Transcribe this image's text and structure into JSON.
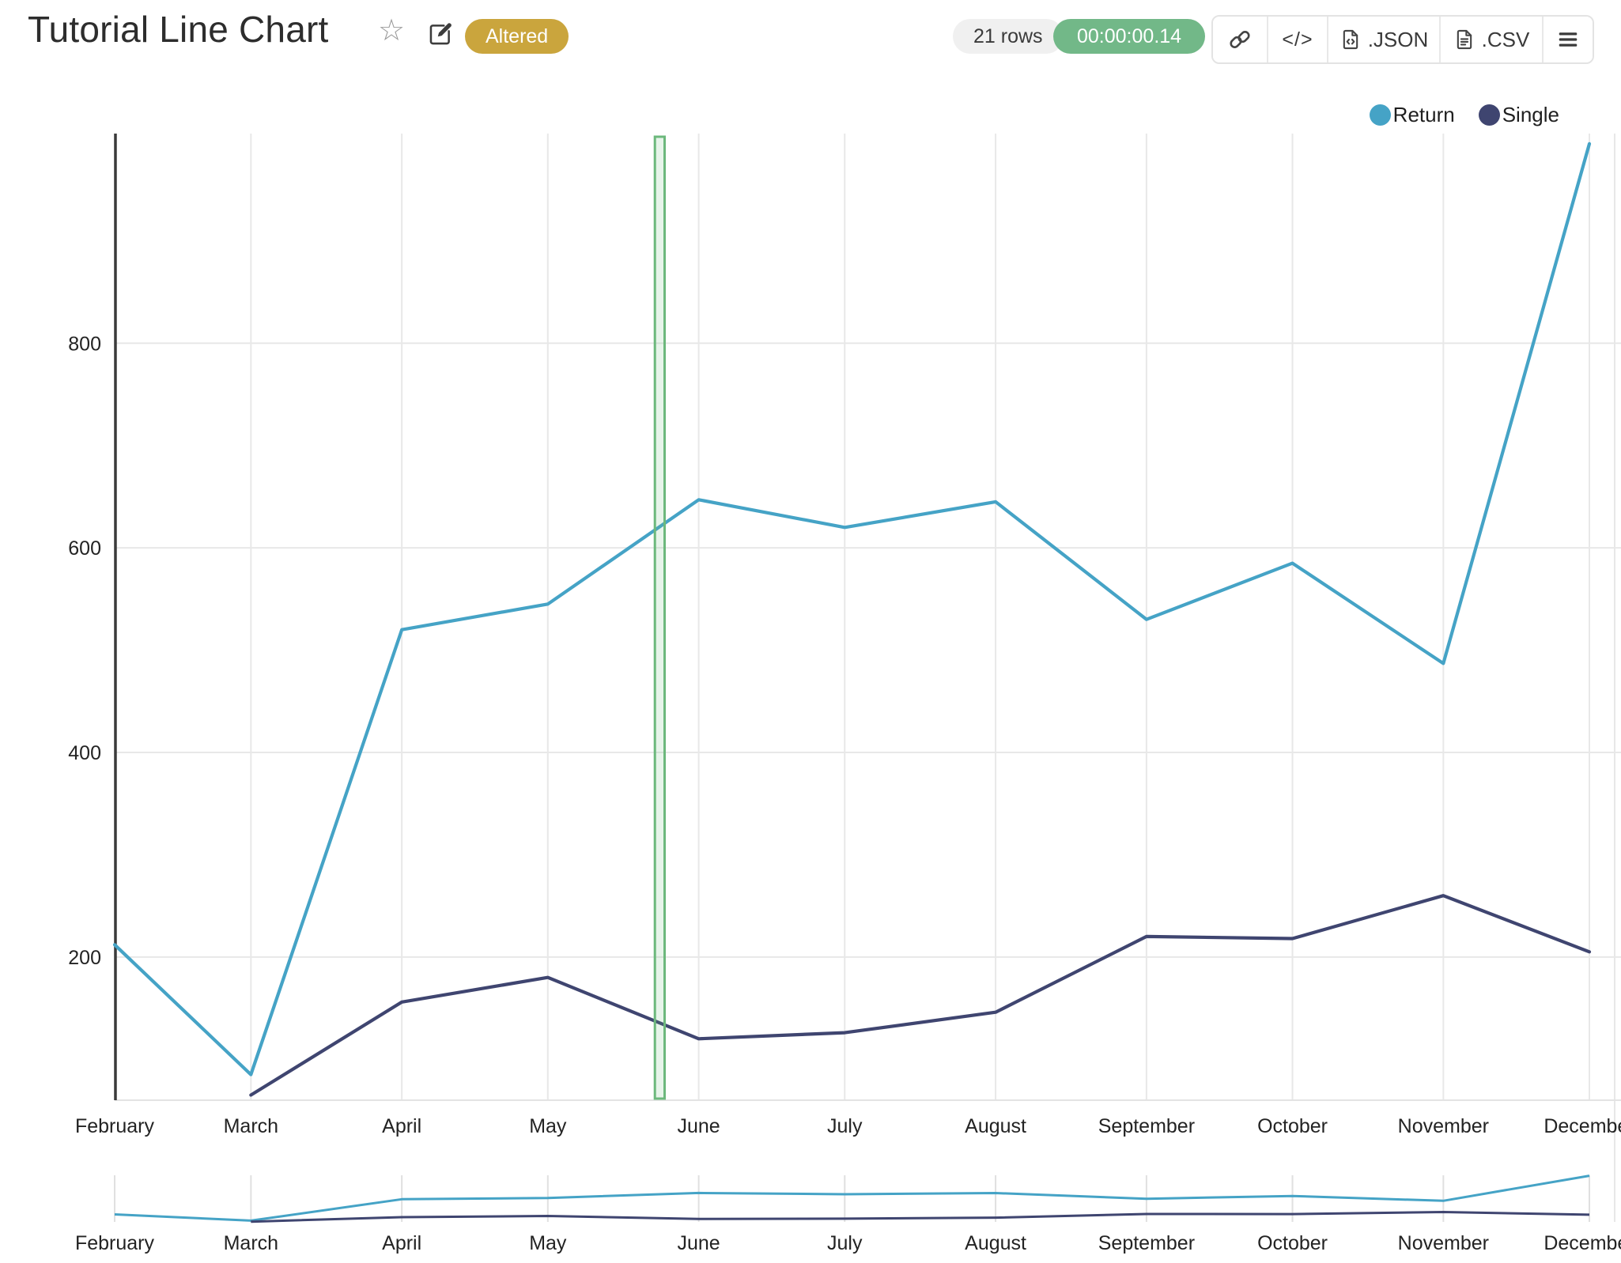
{
  "header": {
    "title": "Tutorial Line Chart",
    "badge": "Altered",
    "badge_bg": "#caa53d",
    "rows_label": "21 rows",
    "rows_pill_bg": "#f0f0f0",
    "duration_label": "00:00:00.14",
    "duration_pill_bg": "#72b888",
    "json_label": ".JSON",
    "csv_label": ".CSV",
    "icon_names": [
      "star-icon",
      "edit-icon",
      "link-icon",
      "embed-code-icon",
      "json-file-icon",
      "csv-file-icon",
      "menu-icon"
    ]
  },
  "legend": [
    {
      "label": "Return",
      "color": "#45a3c6"
    },
    {
      "label": "Single",
      "color": "#3f4570"
    }
  ],
  "chart_data": {
    "type": "line",
    "title": "Tutorial Line Chart",
    "x_axis": {
      "type": "date",
      "categories": [
        "February",
        "March",
        "April",
        "May",
        "June",
        "July",
        "August",
        "September",
        "October",
        "November",
        "December"
      ],
      "day_offsets": [
        0,
        28,
        59,
        89,
        120,
        150,
        181,
        212,
        242,
        273,
        303
      ]
    },
    "y_axis": {
      "ticks": [
        200,
        400,
        600,
        800
      ],
      "range": [
        60,
        1005
      ]
    },
    "series": [
      {
        "name": "Return",
        "color": "#45a3c6",
        "values": [
          212,
          85,
          520,
          545,
          647,
          620,
          645,
          530,
          585,
          487,
          995
        ]
      },
      {
        "name": "Single",
        "color": "#3f4570",
        "values": [
          null,
          65,
          156,
          180,
          120,
          126,
          146,
          220,
          218,
          260,
          205
        ]
      }
    ],
    "highlight_band": {
      "start_day": 111,
      "end_day": 113,
      "stroke": "#6cb87c",
      "fill_opacity": 0.16
    },
    "grid": true,
    "grid_color": "#e8e8e8",
    "axis_line_color": "#3b3b3b",
    "legend_position": "top-right",
    "range_selector": true
  }
}
